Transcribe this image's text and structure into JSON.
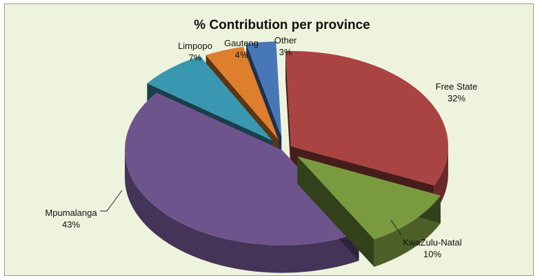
{
  "chart_data": {
    "type": "pie",
    "title": "% Contribution per province",
    "style": "3d-exploded",
    "categories": [
      "Free State",
      "KwaZulu-Natal",
      "Mpumalanga",
      "Limpopo",
      "Gauteng",
      "Other"
    ],
    "values": [
      32,
      10,
      43,
      7,
      4,
      3
    ],
    "labels": [
      "32%",
      "10%",
      "43%",
      "7%",
      "4%",
      "3%"
    ],
    "colors": [
      "#a94442",
      "#7a9a3f",
      "#6e548d",
      "#3a97b2",
      "#de7f2e",
      "#4877b8"
    ],
    "legend": "none"
  }
}
